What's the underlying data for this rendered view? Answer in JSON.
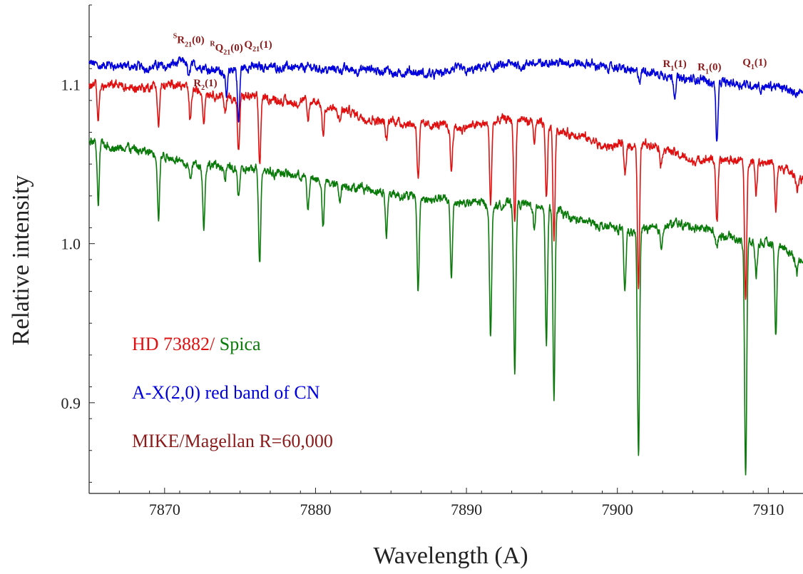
{
  "chart_data": {
    "type": "line",
    "xlabel": "Wavelength (A)",
    "ylabel": "Relative intensity",
    "xlim": [
      7865,
      7912.3
    ],
    "ylim": [
      0.843,
      1.15
    ],
    "xticks": [
      7870,
      7880,
      7890,
      7900,
      7910
    ],
    "yticks": [
      0.9,
      1.0,
      1.1
    ],
    "xtick_labels": [
      "7870",
      "7880",
      "7890",
      "7900",
      "7910"
    ],
    "ytick_labels": [
      "0.9",
      "1.0",
      "1.1"
    ],
    "grid": false,
    "colors": {
      "blue": "#0000dd",
      "red": "#e01010",
      "green": "#0a7a0a",
      "label": "#8b1a1a"
    },
    "series": [
      {
        "color": "#0000dd",
        "continuum": [
          [
            7865,
            1.113
          ],
          [
            7868,
            1.11
          ],
          [
            7871,
            1.114
          ],
          [
            7874,
            1.109
          ],
          [
            7877,
            1.112
          ],
          [
            7882,
            1.11
          ],
          [
            7887,
            1.106
          ],
          [
            7891,
            1.11
          ],
          [
            7896,
            1.114
          ],
          [
            7900,
            1.11
          ],
          [
            7903,
            1.106
          ],
          [
            7906,
            1.102
          ],
          [
            7908,
            1.102
          ],
          [
            7912.3,
            1.095
          ]
        ],
        "lines": [
          [
            7871.6,
            0.01
          ],
          [
            7874.1,
            0.018
          ],
          [
            7874.9,
            0.035
          ],
          [
            7887.3,
            0.004
          ],
          [
            7901.5,
            0.006
          ],
          [
            7903.8,
            0.01
          ],
          [
            7906.6,
            0.038
          ],
          [
            7909.5,
            0.004
          ]
        ]
      },
      {
        "color": "#e01010",
        "continuum": [
          [
            7865,
            1.1
          ],
          [
            7868,
            1.098
          ],
          [
            7871,
            1.1
          ],
          [
            7874,
            1.092
          ],
          [
            7877,
            1.091
          ],
          [
            7880,
            1.088
          ],
          [
            7883,
            1.08
          ],
          [
            7887,
            1.076
          ],
          [
            7890,
            1.074
          ],
          [
            7893,
            1.077
          ],
          [
            7896,
            1.073
          ],
          [
            7899,
            1.06
          ],
          [
            7902,
            1.064
          ],
          [
            7905,
            1.052
          ],
          [
            7908,
            1.052
          ],
          [
            7910,
            1.052
          ],
          [
            7912.3,
            1.04
          ]
        ],
        "lines": [
          [
            7865.6,
            0.022
          ],
          [
            7869.6,
            0.025
          ],
          [
            7871.7,
            0.02
          ],
          [
            7872.6,
            0.018
          ],
          [
            7874.0,
            0.01
          ],
          [
            7874.9,
            0.035
          ],
          [
            7876.3,
            0.042
          ],
          [
            7879.5,
            0.012
          ],
          [
            7880.5,
            0.018
          ],
          [
            7881.6,
            0.008
          ],
          [
            7884.7,
            0.012
          ],
          [
            7886.8,
            0.033
          ],
          [
            7889.0,
            0.028
          ],
          [
            7891.6,
            0.05
          ],
          [
            7893.2,
            0.065
          ],
          [
            7894.5,
            0.012
          ],
          [
            7895.3,
            0.045
          ],
          [
            7895.8,
            0.07
          ],
          [
            7900.5,
            0.02
          ],
          [
            7901.4,
            0.093
          ],
          [
            7902.9,
            0.012
          ],
          [
            7906.6,
            0.04
          ],
          [
            7908.5,
            0.09
          ],
          [
            7909.2,
            0.02
          ],
          [
            7910.5,
            0.03
          ],
          [
            7911.9,
            0.008
          ]
        ]
      },
      {
        "color": "#0a7a0a",
        "continuum": [
          [
            7865,
            1.065
          ],
          [
            7868,
            1.058
          ],
          [
            7871,
            1.053
          ],
          [
            7874,
            1.047
          ],
          [
            7877,
            1.046
          ],
          [
            7880,
            1.04
          ],
          [
            7883,
            1.035
          ],
          [
            7886,
            1.03
          ],
          [
            7889,
            1.027
          ],
          [
            7892,
            1.025
          ],
          [
            7895,
            1.024
          ],
          [
            7898,
            1.013
          ],
          [
            7901,
            1.008
          ],
          [
            7904,
            1.013
          ],
          [
            7907,
            1.005
          ],
          [
            7910,
            0.999
          ],
          [
            7912.3,
            0.99
          ]
        ],
        "lines": [
          [
            7865.6,
            0.04
          ],
          [
            7869.6,
            0.04
          ],
          [
            7871.7,
            0.01
          ],
          [
            7872.6,
            0.04
          ],
          [
            7874.0,
            0.008
          ],
          [
            7874.9,
            0.015
          ],
          [
            7876.3,
            0.06
          ],
          [
            7879.5,
            0.02
          ],
          [
            7880.5,
            0.03
          ],
          [
            7881.6,
            0.008
          ],
          [
            7884.7,
            0.028
          ],
          [
            7886.8,
            0.06
          ],
          [
            7889.0,
            0.048
          ],
          [
            7891.6,
            0.083
          ],
          [
            7893.2,
            0.107
          ],
          [
            7894.5,
            0.015
          ],
          [
            7895.3,
            0.085
          ],
          [
            7895.8,
            0.12
          ],
          [
            7900.5,
            0.04
          ],
          [
            7901.4,
            0.143
          ],
          [
            7902.9,
            0.01
          ],
          [
            7906.6,
            0.01
          ],
          [
            7908.5,
            0.145
          ],
          [
            7909.2,
            0.02
          ],
          [
            7910.5,
            0.055
          ],
          [
            7911.9,
            0.01
          ]
        ]
      }
    ],
    "legend": [
      {
        "text": "HD 73882/",
        "color": "#e01010"
      },
      {
        "text": " Spica",
        "color": "#0a7a0a"
      },
      {
        "text": "A-X(2,0) red band of CN",
        "color": "#0000dd"
      },
      {
        "text": "MIKE/Magellan R=60,000",
        "color": "#8b1a1a"
      }
    ],
    "line_labels": [
      {
        "sup": "S",
        "main": "R",
        "sub": "21",
        "tail": "(0)",
        "x": 7871.6,
        "y": 1.126
      },
      {
        "sup": "R",
        "main": "Q",
        "sub": "21",
        "tail": "(0)",
        "x": 7874.1,
        "y": 1.121
      },
      {
        "sup": "",
        "main": "Q",
        "sub": "21",
        "tail": "(1)",
        "x": 7876.2,
        "y": 1.123
      },
      {
        "sup": "",
        "main": "R",
        "sub": "2",
        "tail": "(1)",
        "x": 7872.7,
        "y": 1.099
      },
      {
        "sup": "",
        "main": "R",
        "sub": "1",
        "tail": "(1)",
        "x": 7903.8,
        "y": 1.111
      },
      {
        "sup": "",
        "main": "R",
        "sub": "1",
        "tail": "(0)",
        "x": 7906.1,
        "y": 1.109
      },
      {
        "sup": "",
        "main": "Q",
        "sub": "1",
        "tail": "(1)",
        "x": 7909.1,
        "y": 1.112
      }
    ]
  }
}
